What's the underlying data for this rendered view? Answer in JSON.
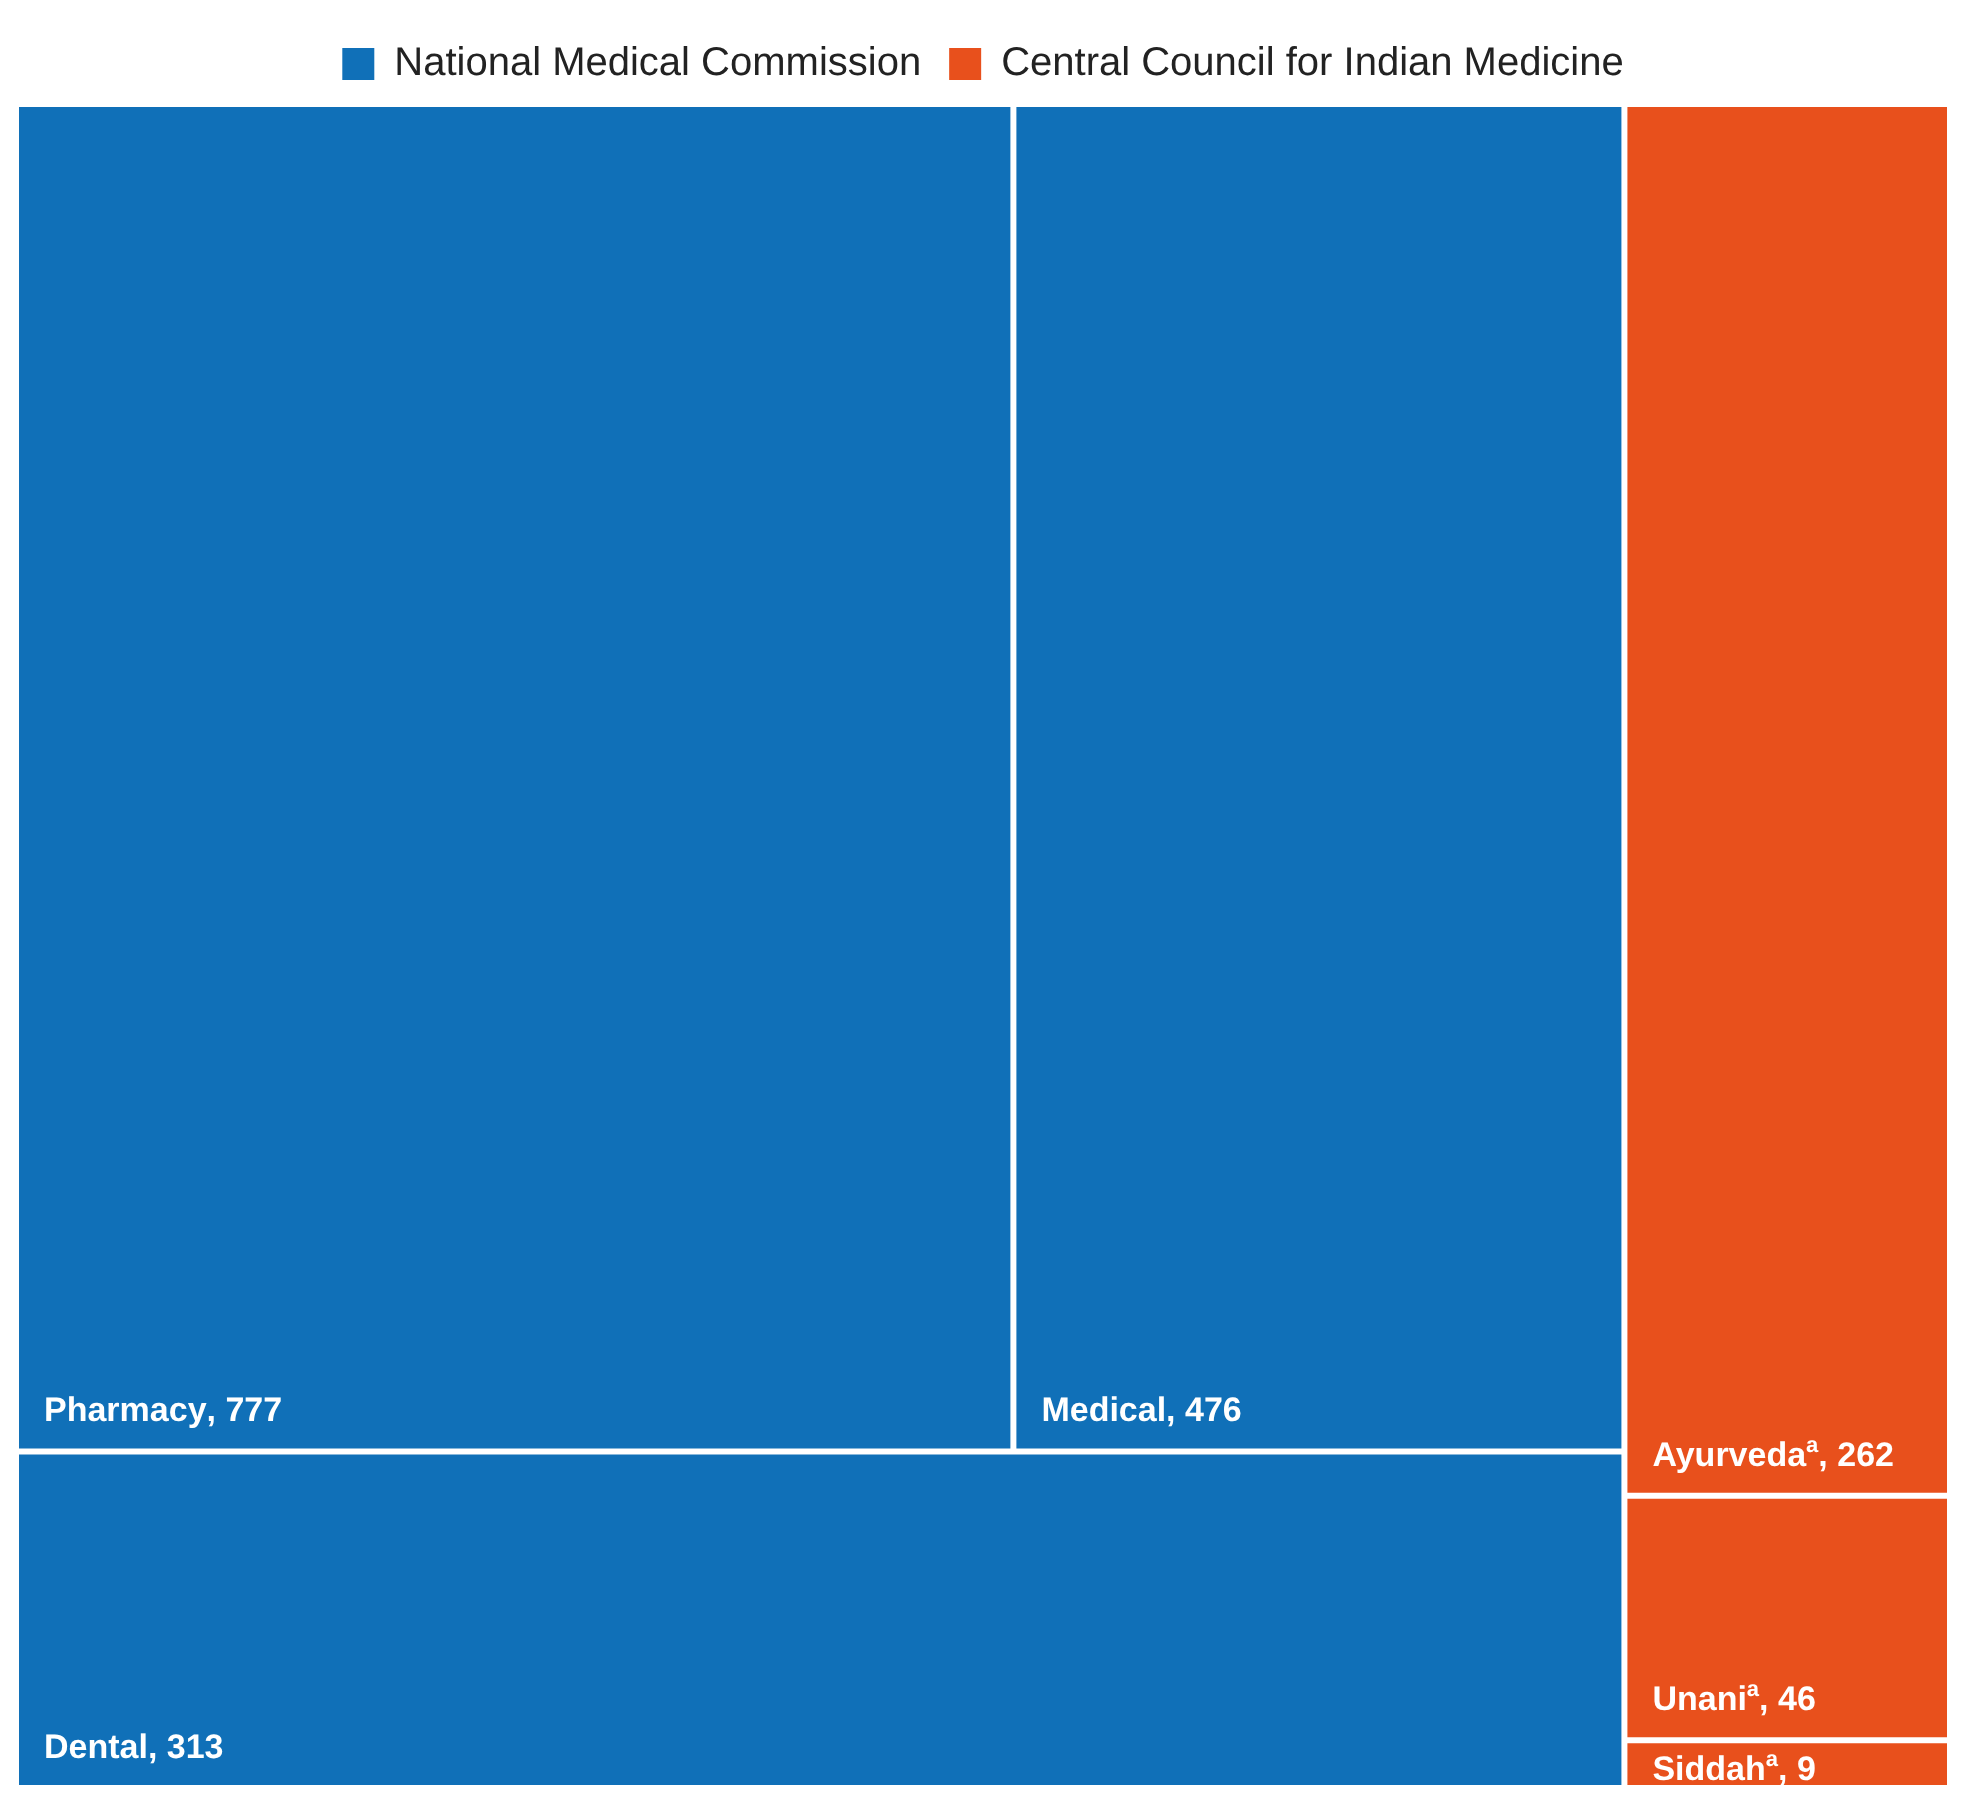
{
  "chart_data": {
    "type": "other",
    "categories": [
      "Pharmacy",
      "Medical",
      "Dental",
      "Ayurveda$^{a}$",
      "Unani$^{a}$",
      "Siddah$^{a}$"
    ],
    "series": [
      {
        "name": "National Medical Commission",
        "color": "#1070b8",
        "values": [
          777,
          476,
          313,
          null,
          null,
          null
        ],
        "value_labels": [
          ", 777",
          ", 476",
          ", 313",
          null,
          null,
          null
        ]
      },
      {
        "name": "Central Council for Indian Medicine",
        "color": "#e8501c",
        "values": [
          null,
          null,
          null,
          262,
          46,
          9
        ],
        "value_labels": [
          null,
          null,
          null,
          ", 262",
          ", 46",
          ", 9"
        ]
      }
    ],
    "legend": "top"
  }
}
